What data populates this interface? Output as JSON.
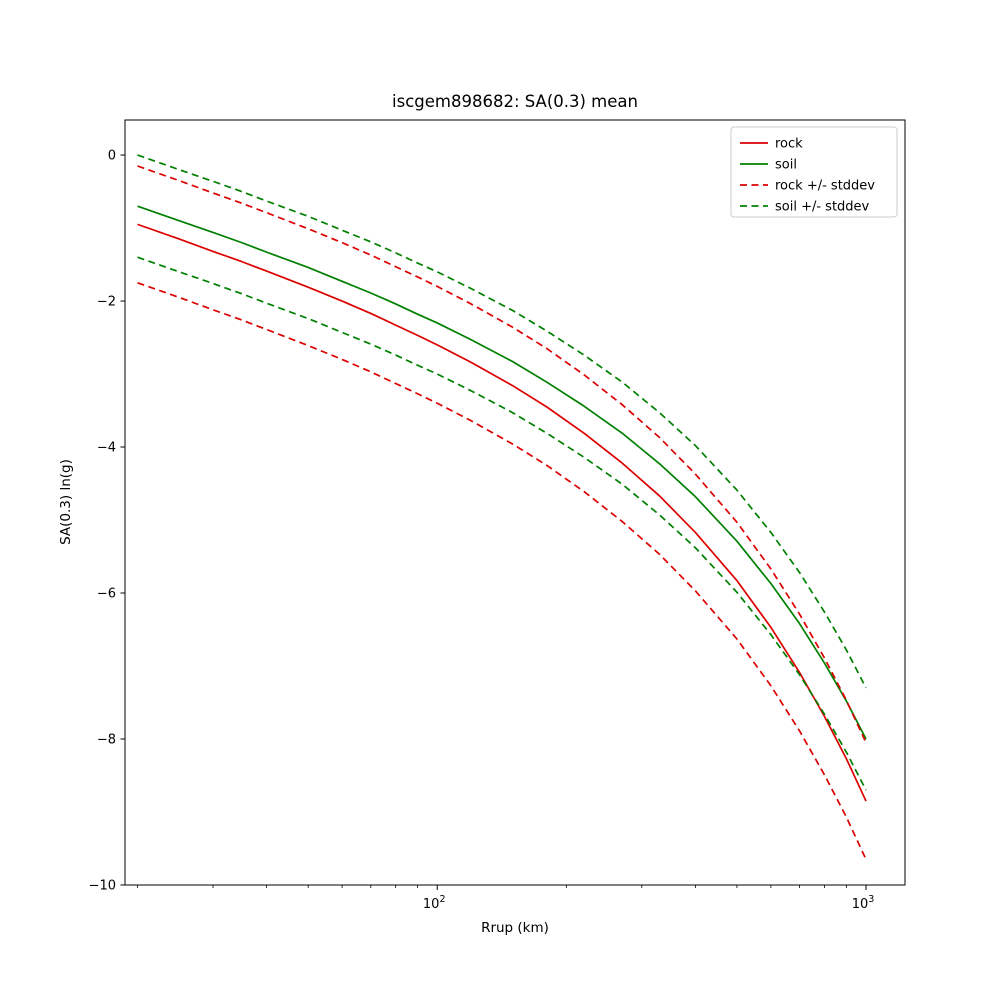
{
  "chart_data": {
    "type": "line",
    "title": "iscgem898682: SA(0.3) mean",
    "xlabel": "Rrup (km)",
    "ylabel": "SA(0.3) ln(g)",
    "x_scale": "log",
    "y_scale": "linear",
    "grid": false,
    "xlim": [
      18.7,
      1233
    ],
    "ylim": [
      -10,
      0.48
    ],
    "yticks": [
      0,
      -2,
      -4,
      -6,
      -8,
      -10
    ],
    "ytick_labels": [
      "0",
      "−2",
      "−4",
      "−6",
      "−8",
      "−10"
    ],
    "xticks": [
      {
        "value": 100,
        "base": "10",
        "exp": "2"
      },
      {
        "value": 1000,
        "base": "10",
        "exp": "3"
      }
    ],
    "colors": {
      "rock": "#dc0000",
      "soil": "#008000"
    },
    "x": [
      20,
      25,
      30,
      35,
      40,
      50,
      60,
      70,
      80,
      90,
      100,
      120,
      150,
      180,
      220,
      270,
      330,
      400,
      500,
      600,
      700,
      800,
      900,
      1000
    ],
    "series": [
      {
        "id": "rock-mean",
        "label": "rock",
        "color": "#dc0000",
        "dash": "solid",
        "values": [
          -0.95,
          -1.15,
          -1.32,
          -1.46,
          -1.59,
          -1.81,
          -2.0,
          -2.17,
          -2.33,
          -2.47,
          -2.6,
          -2.84,
          -3.16,
          -3.45,
          -3.81,
          -4.22,
          -4.67,
          -5.17,
          -5.83,
          -6.47,
          -7.09,
          -7.69,
          -8.27,
          -8.85
        ]
      },
      {
        "id": "soil-mean",
        "label": "soil",
        "color": "#008000",
        "dash": "solid",
        "values": [
          -0.7,
          -0.9,
          -1.06,
          -1.2,
          -1.33,
          -1.54,
          -1.73,
          -1.89,
          -2.04,
          -2.18,
          -2.3,
          -2.53,
          -2.83,
          -3.11,
          -3.44,
          -3.81,
          -4.23,
          -4.68,
          -5.29,
          -5.87,
          -6.42,
          -6.96,
          -7.48,
          -8.0
        ]
      },
      {
        "id": "rock-plus-stddev",
        "label": "rock + stddev",
        "color": "#dc0000",
        "dash": "dashed",
        "values": [
          -0.15,
          -0.35,
          -0.52,
          -0.66,
          -0.79,
          -1.01,
          -1.2,
          -1.37,
          -1.53,
          -1.67,
          -1.8,
          -2.04,
          -2.36,
          -2.65,
          -3.01,
          -3.42,
          -3.87,
          -4.37,
          -5.03,
          -5.67,
          -6.29,
          -6.89,
          -7.47,
          -8.05
        ]
      },
      {
        "id": "rock-minus-stddev",
        "label": "rock - stddev",
        "color": "#dc0000",
        "dash": "dashed",
        "values": [
          -1.75,
          -1.95,
          -2.12,
          -2.26,
          -2.39,
          -2.61,
          -2.8,
          -2.97,
          -3.13,
          -3.27,
          -3.4,
          -3.64,
          -3.96,
          -4.25,
          -4.61,
          -5.02,
          -5.47,
          -5.97,
          -6.63,
          -7.27,
          -7.89,
          -8.49,
          -9.07,
          -9.65
        ]
      },
      {
        "id": "soil-plus-stddev",
        "label": "soil + stddev",
        "color": "#008000",
        "dash": "dashed",
        "values": [
          0.0,
          -0.2,
          -0.36,
          -0.5,
          -0.63,
          -0.84,
          -1.03,
          -1.19,
          -1.34,
          -1.48,
          -1.6,
          -1.83,
          -2.13,
          -2.41,
          -2.74,
          -3.11,
          -3.53,
          -3.98,
          -4.59,
          -5.17,
          -5.72,
          -6.26,
          -6.78,
          -7.3
        ]
      },
      {
        "id": "soil-minus-stddev",
        "label": "soil - stddev",
        "color": "#008000",
        "dash": "dashed",
        "values": [
          -1.4,
          -1.6,
          -1.76,
          -1.9,
          -2.03,
          -2.24,
          -2.43,
          -2.59,
          -2.74,
          -2.88,
          -3.0,
          -3.23,
          -3.53,
          -3.81,
          -4.14,
          -4.51,
          -4.93,
          -5.38,
          -5.99,
          -6.57,
          -7.12,
          -7.66,
          -8.18,
          -8.7
        ]
      }
    ],
    "legend": {
      "position": "upper right",
      "entries": [
        {
          "label": "rock",
          "color": "#dc0000",
          "dash": "solid"
        },
        {
          "label": "soil",
          "color": "#008000",
          "dash": "solid"
        },
        {
          "label": "rock +/- stddev",
          "color": "#dc0000",
          "dash": "dashed"
        },
        {
          "label": "soil +/- stddev",
          "color": "#008000",
          "dash": "dashed"
        }
      ]
    }
  }
}
